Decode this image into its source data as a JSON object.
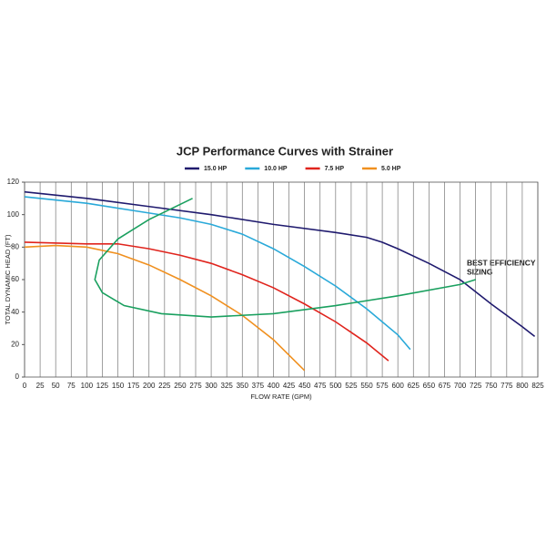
{
  "chart_data": {
    "type": "line",
    "title": "JCP Performance Curves with Strainer",
    "xlabel": "FLOW RATE (GPM)",
    "ylabel": "TOTAL DYNAMIC HEAD (FT)",
    "annotation": [
      "BEST EFFICIENCY",
      "SIZING"
    ],
    "xlim": [
      0,
      825
    ],
    "ylim": [
      0,
      120
    ],
    "xticks": [
      0,
      25,
      50,
      75,
      100,
      125,
      150,
      175,
      200,
      225,
      250,
      275,
      300,
      325,
      350,
      375,
      400,
      425,
      450,
      475,
      500,
      525,
      550,
      575,
      600,
      625,
      650,
      675,
      700,
      725,
      750,
      775,
      800,
      825
    ],
    "yticks": [
      0,
      20,
      40,
      60,
      80,
      100,
      120
    ],
    "grid": "x",
    "series": [
      {
        "name": "15.0 HP",
        "color": "#1f1a6e",
        "x": [
          0,
          100,
          200,
          300,
          400,
          500,
          550,
          575,
          600,
          650,
          700,
          750,
          800,
          820
        ],
        "values": [
          114,
          110,
          105,
          100,
          94,
          89,
          86,
          83,
          79,
          70,
          60,
          45,
          31,
          25
        ]
      },
      {
        "name": "10.0 HP",
        "color": "#29a9d9",
        "x": [
          0,
          100,
          200,
          250,
          300,
          350,
          400,
          450,
          500,
          550,
          600,
          620
        ],
        "values": [
          111,
          107,
          101,
          98,
          94,
          88,
          79,
          68,
          56,
          42,
          26,
          17
        ]
      },
      {
        "name": "7.5 HP",
        "color": "#e0241d",
        "x": [
          0,
          100,
          150,
          200,
          250,
          300,
          350,
          400,
          450,
          500,
          550,
          585
        ],
        "values": [
          83,
          82,
          82,
          79,
          75,
          70,
          63,
          55,
          45,
          34,
          21,
          10
        ]
      },
      {
        "name": "5.0 HP",
        "color": "#f0901f",
        "x": [
          0,
          50,
          100,
          150,
          200,
          250,
          300,
          350,
          400,
          450
        ],
        "values": [
          80,
          81,
          80,
          76,
          69,
          60,
          50,
          38,
          23,
          4
        ]
      },
      {
        "color": "#1aa05f",
        "x": [
          270,
          200,
          150,
          120,
          113,
          125,
          160,
          220,
          300,
          400,
          500,
          600,
          700,
          725
        ],
        "values": [
          110,
          97,
          85,
          72,
          60,
          52,
          44,
          39,
          37,
          39,
          44,
          50,
          57,
          60
        ]
      }
    ]
  }
}
